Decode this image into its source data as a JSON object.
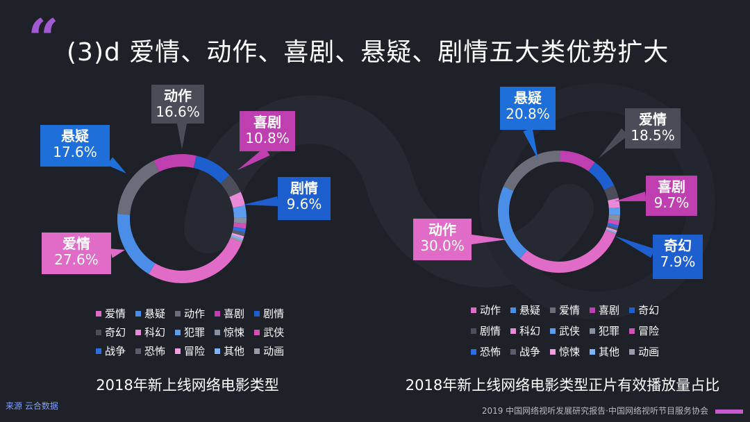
{
  "page": {
    "title": "(3)d 爱情、动作、喜剧、悬疑、剧情五大类优势扩大",
    "quote_mark": "“",
    "source": "来源  云合数据",
    "footer": "2019 中国网络视听发展研究报告·中国网络视听节目服务协会"
  },
  "colors": {
    "background": "#1f2129",
    "accent": "#a25ad3",
    "callout_gray": "#4a4d58",
    "callout_blue": "#1e6fd9",
    "callout_pink": "#c03fb0"
  },
  "chart_data": [
    {
      "type": "pie",
      "style": "donut",
      "title": "2018年新上线网络电影类型",
      "slices": [
        {
          "label": "爱情",
          "value": 27.6,
          "color": "#e06cc8"
        },
        {
          "label": "悬疑",
          "value": 17.6,
          "color": "#4a8ee8"
        },
        {
          "label": "动作",
          "value": 16.6,
          "color": "#6b6e7a"
        },
        {
          "label": "喜剧",
          "value": 10.8,
          "color": "#c03fb0"
        },
        {
          "label": "剧情",
          "value": 9.6,
          "color": "#1e5fd0"
        },
        {
          "label": "奇幻",
          "value": 5.0,
          "color": "#4b4e5a"
        },
        {
          "label": "科幻",
          "value": 3.5,
          "color": "#e88ad8"
        },
        {
          "label": "犯罪",
          "value": 3.0,
          "color": "#5c9df0"
        },
        {
          "label": "惊悚",
          "value": 1.5,
          "color": "#8890a4"
        },
        {
          "label": "武侠",
          "value": 1.3,
          "color": "#d050b8"
        },
        {
          "label": "战争",
          "value": 1.0,
          "color": "#2a70e0"
        },
        {
          "label": "恐怖",
          "value": 0.9,
          "color": "#5a5d6a"
        },
        {
          "label": "冒险",
          "value": 0.6,
          "color": "#f0a0e0"
        },
        {
          "label": "其他",
          "value": 0.5,
          "color": "#80b4ff"
        },
        {
          "label": "动画",
          "value": 0.5,
          "color": "#9a9cac"
        }
      ],
      "callouts": [
        {
          "label": "爱情",
          "percent": "27.6%",
          "color": "#e06cc8"
        },
        {
          "label": "悬疑",
          "percent": "17.6%",
          "color": "#1e6fd9"
        },
        {
          "label": "动作",
          "percent": "16.6%",
          "color": "#4a4d58"
        },
        {
          "label": "喜剧",
          "percent": "10.8%",
          "color": "#c03fb0"
        },
        {
          "label": "剧情",
          "percent": "9.6%",
          "color": "#1e5fd0"
        }
      ]
    },
    {
      "type": "pie",
      "style": "donut",
      "title": "2018年新上线网络电影类型正片有效播放量占比",
      "slices": [
        {
          "label": "动作",
          "value": 30.0,
          "color": "#e06cc8"
        },
        {
          "label": "悬疑",
          "value": 20.8,
          "color": "#4a8ee8"
        },
        {
          "label": "爱情",
          "value": 18.5,
          "color": "#6b6e7a"
        },
        {
          "label": "喜剧",
          "value": 9.7,
          "color": "#c03fb0"
        },
        {
          "label": "奇幻",
          "value": 7.9,
          "color": "#1e5fd0"
        },
        {
          "label": "剧情",
          "value": 3.5,
          "color": "#4b4e5a"
        },
        {
          "label": "科幻",
          "value": 2.5,
          "color": "#e88ad8"
        },
        {
          "label": "武侠",
          "value": 2.0,
          "color": "#5c9df0"
        },
        {
          "label": "犯罪",
          "value": 1.5,
          "color": "#8890a4"
        },
        {
          "label": "冒险",
          "value": 1.2,
          "color": "#d050b8"
        },
        {
          "label": "恐怖",
          "value": 0.8,
          "color": "#2a70e0"
        },
        {
          "label": "战争",
          "value": 0.6,
          "color": "#5a5d6a"
        },
        {
          "label": "惊悚",
          "value": 0.5,
          "color": "#f0a0e0"
        },
        {
          "label": "其他",
          "value": 0.3,
          "color": "#80b4ff"
        },
        {
          "label": "动画",
          "value": 0.2,
          "color": "#9a9cac"
        }
      ],
      "callouts": [
        {
          "label": "悬疑",
          "percent": "20.8%",
          "color": "#1e6fd9"
        },
        {
          "label": "爱情",
          "percent": "18.5%",
          "color": "#4a4d58"
        },
        {
          "label": "喜剧",
          "percent": "9.7%",
          "color": "#c03fb0"
        },
        {
          "label": "奇幻",
          "percent": "7.9%",
          "color": "#1e5fd0"
        },
        {
          "label": "动作",
          "percent": "30.0%",
          "color": "#e06cc8"
        }
      ]
    }
  ]
}
